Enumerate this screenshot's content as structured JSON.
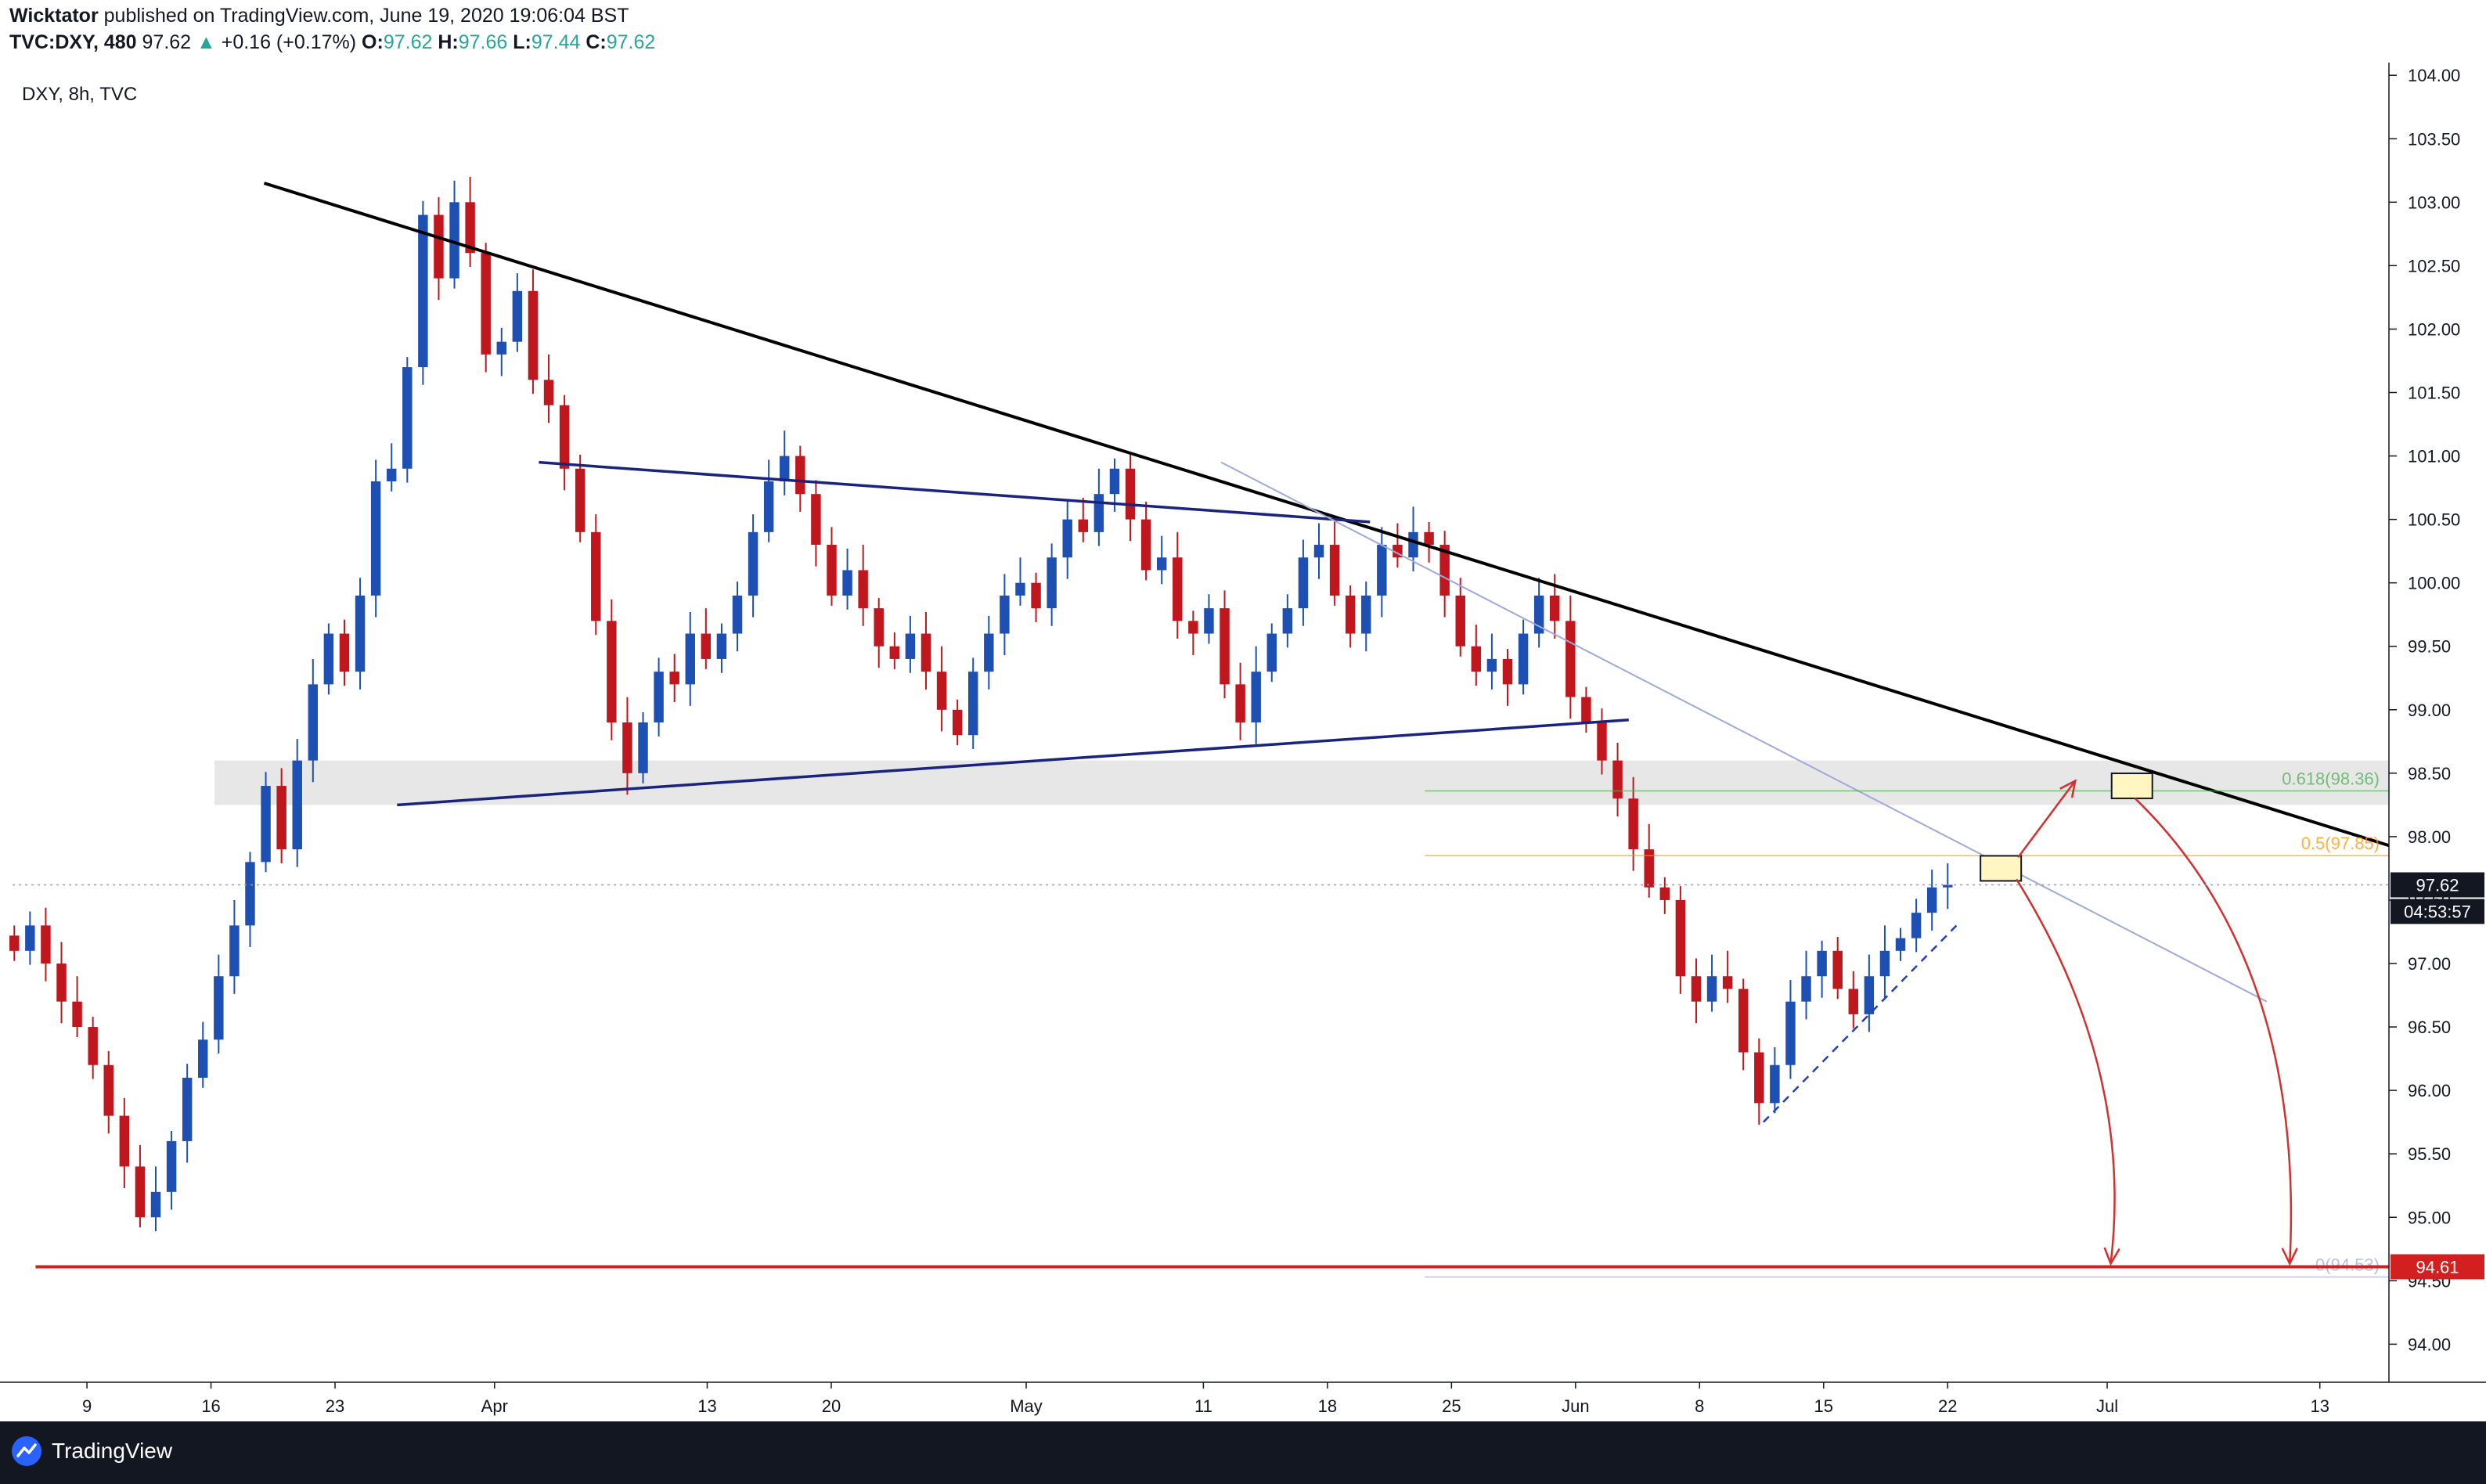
{
  "header": {
    "author": "Wicktator",
    "publish_text": "published on TradingView.com, June 19, 2020 19:06:04 BST",
    "symbol": "TVC:DXY, 480",
    "last": "97.62",
    "change": "+0.16 (+0.17%)",
    "o_label": "O:",
    "o_value": "97.62",
    "h_label": "H:",
    "h_value": "97.66",
    "l_label": "L:",
    "l_value": "97.44",
    "c_label": "C:",
    "c_value": "97.62"
  },
  "legend": {
    "title": "DXY, 8h, TVC"
  },
  "footer": {
    "brand": "TradingView"
  },
  "colors": {
    "up": "#1e50b4",
    "down": "#c0161e",
    "trendline": "#000000",
    "triangle": "#1a237e",
    "support": "#d31f1f",
    "zone": "#e3e3e3",
    "fib618": "#4caf50",
    "fib05": "#ff9800",
    "arrow": "#d32f2f",
    "box": "#fff6c2"
  },
  "chart_data": {
    "type": "candlestick",
    "title": "DXY, 8h, TVC",
    "ylim": [
      93.7,
      104.1
    ],
    "y_ticks": [
      "104.00",
      "103.50",
      "103.00",
      "102.50",
      "102.00",
      "101.50",
      "101.00",
      "100.50",
      "100.00",
      "99.50",
      "99.00",
      "98.50",
      "98.00",
      "97.50",
      "97.00",
      "96.50",
      "96.00",
      "95.50",
      "95.00",
      "94.50",
      "94.00"
    ],
    "x_ticks": [
      {
        "label": "9",
        "day": 9
      },
      {
        "label": "16",
        "day": 16
      },
      {
        "label": "23",
        "day": 23
      },
      {
        "label": "Apr",
        "day": 32
      },
      {
        "label": "13",
        "day": 44
      },
      {
        "label": "20",
        "day": 51
      },
      {
        "label": "May",
        "day": 62
      },
      {
        "label": "11",
        "day": 72
      },
      {
        "label": "18",
        "day": 79
      },
      {
        "label": "25",
        "day": 86
      },
      {
        "label": "Jun",
        "day": 93
      },
      {
        "label": "8",
        "day": 100
      },
      {
        "label": "15",
        "day": 107
      },
      {
        "label": "22",
        "day": 114
      },
      {
        "label": "Jul",
        "day": 123
      },
      {
        "label": "13",
        "day": 135
      }
    ],
    "x_range_days": [
      4.8,
      138.9
    ],
    "series_closes": [
      97.1,
      97.3,
      97.0,
      96.7,
      96.5,
      96.2,
      95.8,
      95.4,
      95.0,
      95.2,
      95.6,
      96.1,
      96.4,
      96.9,
      97.3,
      97.8,
      98.4,
      97.9,
      98.6,
      99.2,
      99.6,
      99.3,
      99.9,
      100.8,
      100.9,
      101.7,
      102.9,
      102.4,
      103.0,
      102.6,
      101.8,
      101.9,
      102.3,
      101.6,
      101.4,
      100.9,
      100.4,
      99.7,
      98.9,
      98.5,
      98.9,
      99.3,
      99.2,
      99.6,
      99.4,
      99.6,
      99.9,
      100.4,
      100.8,
      101.0,
      100.7,
      100.3,
      99.9,
      100.1,
      99.8,
      99.5,
      99.4,
      99.6,
      99.3,
      99.0,
      98.8,
      99.3,
      99.6,
      99.9,
      100.0,
      99.8,
      100.2,
      100.5,
      100.4,
      100.7,
      100.9,
      100.5,
      100.1,
      100.2,
      99.7,
      99.6,
      99.8,
      99.2,
      98.9,
      99.3,
      99.6,
      99.8,
      100.2,
      100.3,
      99.9,
      99.6,
      99.9,
      100.3,
      100.2,
      100.4,
      100.3,
      99.9,
      99.5,
      99.3,
      99.4,
      99.2,
      99.6,
      99.9,
      99.7,
      99.1,
      98.9,
      98.6,
      98.3,
      97.9,
      97.6,
      97.5,
      96.9,
      96.7,
      96.9,
      96.8,
      96.3,
      95.9,
      96.2,
      96.7,
      96.9,
      97.1,
      96.8,
      96.6,
      96.9,
      97.1,
      97.2,
      97.4,
      97.6,
      97.62
    ],
    "annotations": {
      "resistance_trendline": {
        "from": [
          19,
          103.15
        ],
        "to": [
          138.9,
          97.93
        ]
      },
      "triangle_upper": {
        "from": [
          34.5,
          100.95
        ],
        "to": [
          81.4,
          100.48
        ]
      },
      "triangle_lower": {
        "from": [
          26.5,
          98.25
        ],
        "to": [
          96.0,
          98.92
        ]
      },
      "thin_trendline": {
        "from": [
          73.0,
          100.95
        ],
        "to": [
          132.0,
          96.7
        ]
      },
      "support_zone": {
        "low": 98.25,
        "high": 98.6,
        "from_day": 16.2
      },
      "support_line": {
        "value": 94.61,
        "from_day": 6.1
      },
      "rising_support_dashed": {
        "from": [
          103.6,
          95.75
        ],
        "to": [
          114.5,
          97.3
        ]
      },
      "fib_618": {
        "label": "0.618(98.36)",
        "value": 98.36
      },
      "fib_05": {
        "label": "0.5(97.85)",
        "value": 97.85
      },
      "fib_bottom": {
        "label": "0(94.53)",
        "value": 94.53
      },
      "box_mid": {
        "day": 117.0,
        "price": 97.75
      },
      "box_high": {
        "day": 124.4,
        "price": 98.4
      },
      "price_tags": [
        {
          "label": "97.62",
          "value": 97.62,
          "kind": "last"
        },
        {
          "label": "04:53:57",
          "value": 97.42,
          "kind": "timer"
        },
        {
          "label": "94.61",
          "value": 94.61,
          "kind": "support"
        }
      ]
    }
  }
}
